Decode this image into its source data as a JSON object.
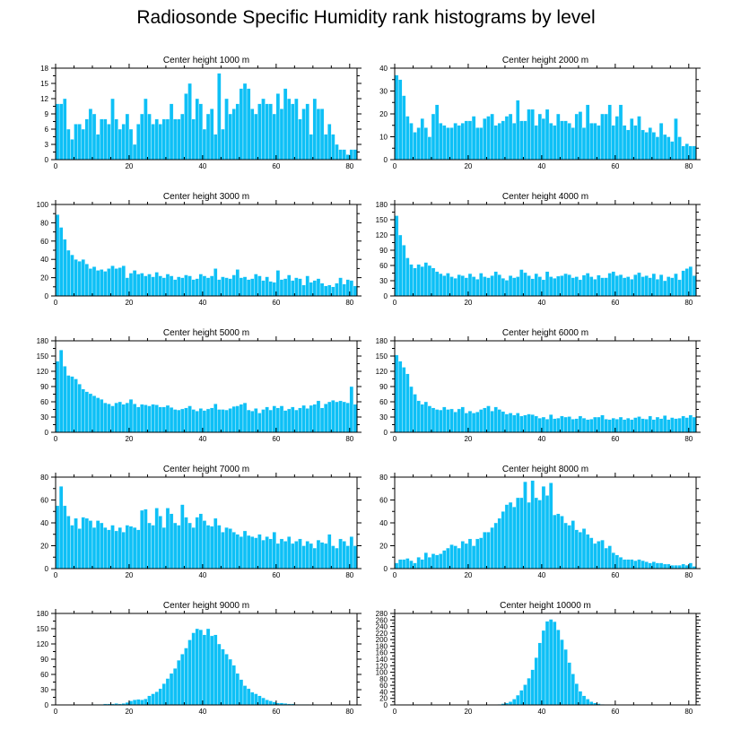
{
  "page": {
    "title": "Radiosonde Specific Humidity rank histograms by level"
  },
  "style": {
    "bar_color": "#0ec0f6",
    "bar_edge": "#ffffff",
    "axis_color": "#000000"
  },
  "chart_data": [
    {
      "type": "bar",
      "title": "Center height 1000 m",
      "xlim": [
        0,
        82
      ],
      "ylim": [
        0,
        18
      ],
      "xticks": [
        0,
        20,
        40,
        60,
        80
      ],
      "yticks": [
        0,
        3,
        6,
        9,
        12,
        15,
        18
      ],
      "values": [
        11,
        11,
        12,
        6,
        4,
        7,
        7,
        6,
        8,
        10,
        9,
        5,
        8,
        8,
        7,
        12,
        8,
        6,
        7,
        9,
        6,
        3,
        7,
        9,
        12,
        9,
        7,
        8,
        7,
        8,
        8,
        11,
        8,
        8,
        9,
        13,
        15,
        8,
        12,
        11,
        6,
        9,
        10,
        5,
        17,
        6,
        12,
        9,
        10,
        11,
        14,
        15,
        14,
        10,
        9,
        11,
        12,
        11,
        11,
        9,
        13,
        10,
        14,
        12,
        11,
        12,
        8,
        10,
        11,
        5,
        12,
        10,
        10,
        5,
        7,
        5,
        3,
        2,
        2,
        1,
        2,
        2
      ]
    },
    {
      "type": "bar",
      "title": "Center height 2000 m",
      "xlim": [
        0,
        82
      ],
      "ylim": [
        0,
        40
      ],
      "xticks": [
        0,
        20,
        40,
        60,
        80
      ],
      "yticks": [
        0,
        10,
        20,
        30,
        40
      ],
      "values": [
        37,
        35,
        28,
        19,
        16,
        12,
        14,
        18,
        14,
        10,
        20,
        24,
        16,
        15,
        14,
        14,
        16,
        15,
        16,
        17,
        17,
        19,
        14,
        14,
        18,
        19,
        20,
        15,
        16,
        17,
        19,
        20,
        16,
        26,
        17,
        17,
        22,
        22,
        15,
        20,
        18,
        22,
        16,
        15,
        20,
        17,
        17,
        16,
        14,
        20,
        21,
        14,
        24,
        16,
        16,
        15,
        20,
        20,
        24,
        15,
        19,
        24,
        15,
        13,
        18,
        15,
        19,
        13,
        12,
        14,
        12,
        10,
        16,
        11,
        10,
        8,
        18,
        10,
        6,
        7,
        6,
        6
      ]
    },
    {
      "type": "bar",
      "title": "Center height 3000 m",
      "xlim": [
        0,
        82
      ],
      "ylim": [
        0,
        100
      ],
      "xticks": [
        0,
        20,
        40,
        60,
        80
      ],
      "yticks": [
        0,
        20,
        40,
        60,
        80,
        100
      ],
      "values": [
        89,
        75,
        62,
        50,
        45,
        40,
        38,
        40,
        35,
        30,
        32,
        28,
        29,
        27,
        30,
        33,
        30,
        31,
        33,
        20,
        25,
        28,
        24,
        25,
        22,
        24,
        21,
        26,
        22,
        20,
        24,
        22,
        18,
        21,
        20,
        23,
        22,
        18,
        19,
        24,
        22,
        20,
        22,
        30,
        18,
        21,
        20,
        19,
        23,
        29,
        20,
        21,
        18,
        19,
        24,
        22,
        17,
        21,
        16,
        15,
        28,
        18,
        19,
        23,
        17,
        20,
        19,
        12,
        22,
        15,
        17,
        19,
        14,
        11,
        12,
        10,
        14,
        20,
        13,
        18,
        17,
        11
      ]
    },
    {
      "type": "bar",
      "title": "Center height 4000 m",
      "xlim": [
        0,
        82
      ],
      "ylim": [
        0,
        180
      ],
      "xticks": [
        0,
        20,
        40,
        60,
        80
      ],
      "yticks": [
        0,
        30,
        60,
        90,
        120,
        150,
        180
      ],
      "values": [
        158,
        120,
        100,
        75,
        62,
        55,
        62,
        58,
        66,
        60,
        55,
        48,
        44,
        40,
        45,
        38,
        35,
        42,
        40,
        36,
        44,
        38,
        33,
        45,
        38,
        36,
        40,
        48,
        42,
        35,
        31,
        40,
        36,
        38,
        52,
        46,
        40,
        34,
        44,
        38,
        32,
        48,
        38,
        35,
        39,
        40,
        44,
        42,
        36,
        38,
        32,
        41,
        45,
        38,
        33,
        41,
        36,
        36,
        45,
        48,
        40,
        42,
        36,
        38,
        33,
        42,
        46,
        38,
        40,
        36,
        44,
        33,
        42,
        30,
        38,
        36,
        44,
        32,
        50,
        54,
        58,
        40
      ]
    },
    {
      "type": "bar",
      "title": "Center height 5000 m",
      "xlim": [
        0,
        82
      ],
      "ylim": [
        0,
        180
      ],
      "xticks": [
        0,
        20,
        40,
        60,
        80
      ],
      "yticks": [
        0,
        30,
        60,
        90,
        120,
        150,
        180
      ],
      "values": [
        140,
        162,
        130,
        112,
        110,
        105,
        95,
        85,
        80,
        76,
        72,
        68,
        65,
        58,
        56,
        52,
        58,
        60,
        55,
        58,
        65,
        56,
        50,
        55,
        54,
        52,
        55,
        54,
        50,
        50,
        53,
        49,
        45,
        44,
        46,
        48,
        52,
        45,
        42,
        47,
        43,
        46,
        48,
        56,
        45,
        45,
        44,
        47,
        51,
        52,
        55,
        58,
        44,
        42,
        47,
        38,
        45,
        50,
        44,
        52,
        48,
        52,
        43,
        46,
        50,
        44,
        48,
        53,
        47,
        53,
        55,
        62,
        48,
        56,
        60,
        63,
        60,
        62,
        60,
        58,
        90,
        55
      ]
    },
    {
      "type": "bar",
      "title": "Center height 6000 m",
      "xlim": [
        0,
        82
      ],
      "ylim": [
        0,
        180
      ],
      "xticks": [
        0,
        20,
        40,
        60,
        80
      ],
      "yticks": [
        0,
        30,
        60,
        90,
        120,
        150,
        180
      ],
      "values": [
        152,
        140,
        128,
        115,
        90,
        75,
        62,
        55,
        60,
        52,
        48,
        45,
        44,
        50,
        45,
        46,
        40,
        46,
        50,
        38,
        42,
        38,
        40,
        45,
        48,
        52,
        42,
        50,
        45,
        41,
        36,
        38,
        34,
        38,
        32,
        34,
        36,
        35,
        32,
        28,
        30,
        26,
        35,
        27,
        28,
        32,
        30,
        31,
        26,
        27,
        32,
        28,
        25,
        26,
        30,
        30,
        34,
        26,
        25,
        28,
        26,
        30,
        25,
        28,
        25,
        29,
        31,
        27,
        26,
        32,
        25,
        30,
        27,
        33,
        25,
        29,
        27,
        28,
        32,
        29,
        34,
        30
      ]
    },
    {
      "type": "bar",
      "title": "Center height 7000 m",
      "xlim": [
        0,
        82
      ],
      "ylim": [
        0,
        80
      ],
      "xticks": [
        0,
        20,
        40,
        60,
        80
      ],
      "yticks": [
        0,
        20,
        40,
        60,
        80
      ],
      "values": [
        55,
        72,
        55,
        46,
        38,
        44,
        35,
        45,
        44,
        42,
        36,
        42,
        40,
        36,
        34,
        38,
        33,
        36,
        32,
        38,
        37,
        36,
        34,
        51,
        52,
        40,
        38,
        53,
        46,
        36,
        53,
        48,
        40,
        38,
        56,
        45,
        40,
        36,
        45,
        48,
        42,
        38,
        37,
        44,
        38,
        32,
        36,
        35,
        32,
        30,
        28,
        33,
        29,
        28,
        27,
        30,
        25,
        28,
        26,
        32,
        22,
        26,
        24,
        28,
        22,
        24,
        26,
        20,
        24,
        22,
        18,
        25,
        23,
        22,
        30,
        20,
        18,
        26,
        24,
        20,
        28,
        20
      ]
    },
    {
      "type": "bar",
      "title": "Center height 8000 m",
      "xlim": [
        0,
        82
      ],
      "ylim": [
        0,
        80
      ],
      "xticks": [
        0,
        20,
        40,
        60,
        80
      ],
      "yticks": [
        0,
        20,
        40,
        60,
        80
      ],
      "values": [
        5,
        8,
        8,
        9,
        7,
        5,
        10,
        8,
        14,
        10,
        13,
        12,
        13,
        16,
        18,
        21,
        20,
        18,
        24,
        22,
        26,
        20,
        26,
        27,
        32,
        32,
        36,
        40,
        44,
        50,
        56,
        58,
        54,
        62,
        62,
        76,
        58,
        77,
        62,
        60,
        72,
        64,
        75,
        47,
        48,
        46,
        40,
        38,
        42,
        34,
        32,
        35,
        30,
        27,
        22,
        24,
        25,
        18,
        20,
        14,
        12,
        10,
        8,
        8,
        8,
        7,
        8,
        7,
        6,
        5,
        6,
        5,
        5,
        4,
        4,
        3,
        3,
        3,
        4,
        3,
        5,
        2
      ]
    },
    {
      "type": "bar",
      "title": "Center height 9000 m",
      "xlim": [
        0,
        82
      ],
      "ylim": [
        0,
        180
      ],
      "xticks": [
        0,
        20,
        40,
        60,
        80
      ],
      "yticks": [
        0,
        30,
        60,
        90,
        120,
        150,
        180
      ],
      "values": [
        0,
        0,
        0,
        0,
        0,
        0,
        0,
        0,
        0,
        0,
        1,
        1,
        1,
        2,
        2,
        2,
        3,
        2,
        3,
        5,
        8,
        10,
        11,
        10,
        12,
        18,
        22,
        26,
        32,
        42,
        52,
        62,
        72,
        88,
        100,
        112,
        128,
        142,
        150,
        148,
        138,
        150,
        136,
        138,
        120,
        110,
        100,
        90,
        78,
        62,
        50,
        38,
        32,
        25,
        22,
        18,
        14,
        10,
        8,
        6,
        4,
        4,
        3,
        2,
        2,
        1,
        1,
        1,
        1,
        0,
        1,
        0,
        0,
        0,
        0,
        0,
        0,
        0,
        0,
        0,
        0,
        0
      ]
    },
    {
      "type": "bar",
      "title": "Center height 10000 m",
      "xlim": [
        0,
        82
      ],
      "ylim": [
        0,
        280
      ],
      "xticks": [
        0,
        20,
        40,
        60,
        80
      ],
      "yticks": [
        0,
        20,
        40,
        60,
        80,
        100,
        120,
        140,
        160,
        180,
        200,
        220,
        240,
        260,
        280
      ],
      "values": [
        0,
        0,
        0,
        0,
        0,
        0,
        0,
        0,
        0,
        0,
        0,
        0,
        0,
        0,
        0,
        0,
        0,
        0,
        0,
        0,
        0,
        0,
        0,
        0,
        0,
        1,
        1,
        1,
        2,
        4,
        6,
        10,
        18,
        30,
        45,
        62,
        82,
        108,
        145,
        190,
        228,
        256,
        262,
        255,
        230,
        200,
        170,
        130,
        95,
        65,
        42,
        28,
        18,
        10,
        6,
        4,
        2,
        1,
        1,
        0,
        0,
        0,
        0,
        0,
        0,
        0,
        0,
        0,
        0,
        0,
        0,
        0,
        0,
        0,
        0,
        0,
        0,
        0,
        0,
        0,
        0,
        0
      ]
    }
  ]
}
